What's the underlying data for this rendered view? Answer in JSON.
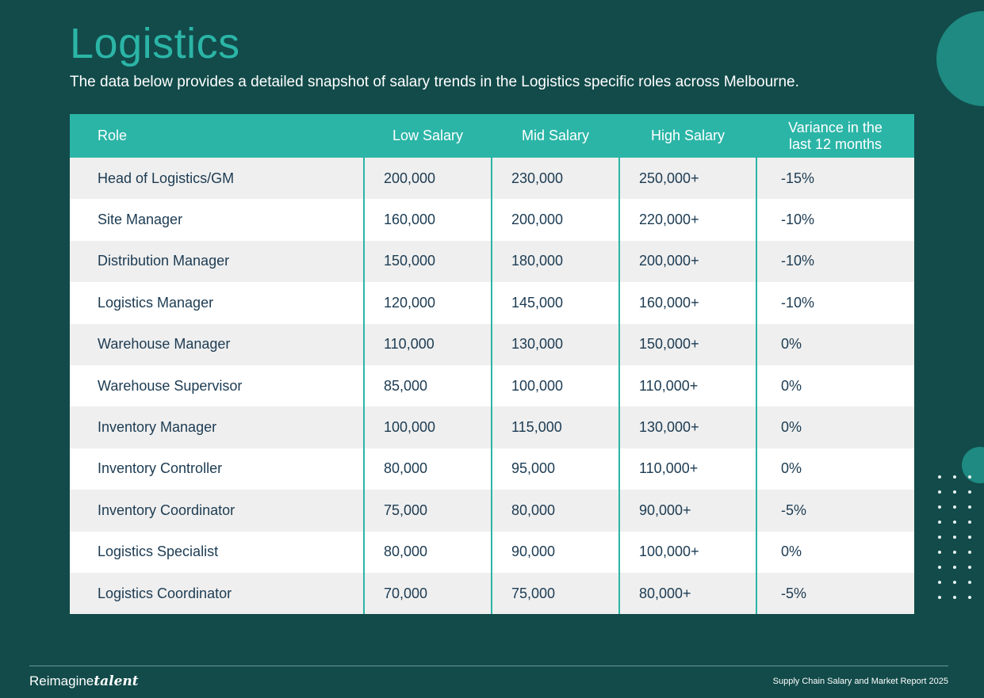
{
  "page": {
    "title": "Logistics",
    "subtitle": "The data below provides a detailed snapshot of salary trends in the Logistics specific roles across Melbourne."
  },
  "table": {
    "headers": [
      "Role",
      "Low Salary",
      "Mid Salary",
      "High Salary",
      "Variance in the last 12 months"
    ],
    "rows": [
      [
        "Head of Logistics/GM",
        "200,000",
        "230,000",
        "250,000+",
        "-15%"
      ],
      [
        "Site Manager",
        "160,000",
        "200,000",
        "220,000+",
        "-10%"
      ],
      [
        "Distribution Manager",
        "150,000",
        "180,000",
        "200,000+",
        "-10%"
      ],
      [
        "Logistics Manager",
        "120,000",
        "145,000",
        "160,000+",
        "-10%"
      ],
      [
        "Warehouse Manager",
        "110,000",
        "130,000",
        "150,000+",
        "0%"
      ],
      [
        "Warehouse Supervisor",
        "85,000",
        "100,000",
        "110,000+",
        "0%"
      ],
      [
        "Inventory Manager",
        "100,000",
        "115,000",
        "130,000+",
        "0%"
      ],
      [
        "Inventory Controller",
        "80,000",
        "95,000",
        "110,000+",
        "0%"
      ],
      [
        "Inventory Coordinator",
        "75,000",
        "80,000",
        "90,000+",
        "-5%"
      ],
      [
        "Logistics Specialist",
        "80,000",
        "90,000",
        "100,000+",
        "0%"
      ],
      [
        "Logistics Coordinator",
        "70,000",
        "75,000",
        "80,000+",
        "-5%"
      ]
    ]
  },
  "footer": {
    "brand_regular": "Reimagine",
    "brand_bold": "talent",
    "report_title": "Supply Chain Salary and Market Report 2025"
  },
  "colors": {
    "background": "#124b4a",
    "accent": "#2bb5a7",
    "row_shade": "#efefef",
    "text_dark": "#1c3b52"
  }
}
